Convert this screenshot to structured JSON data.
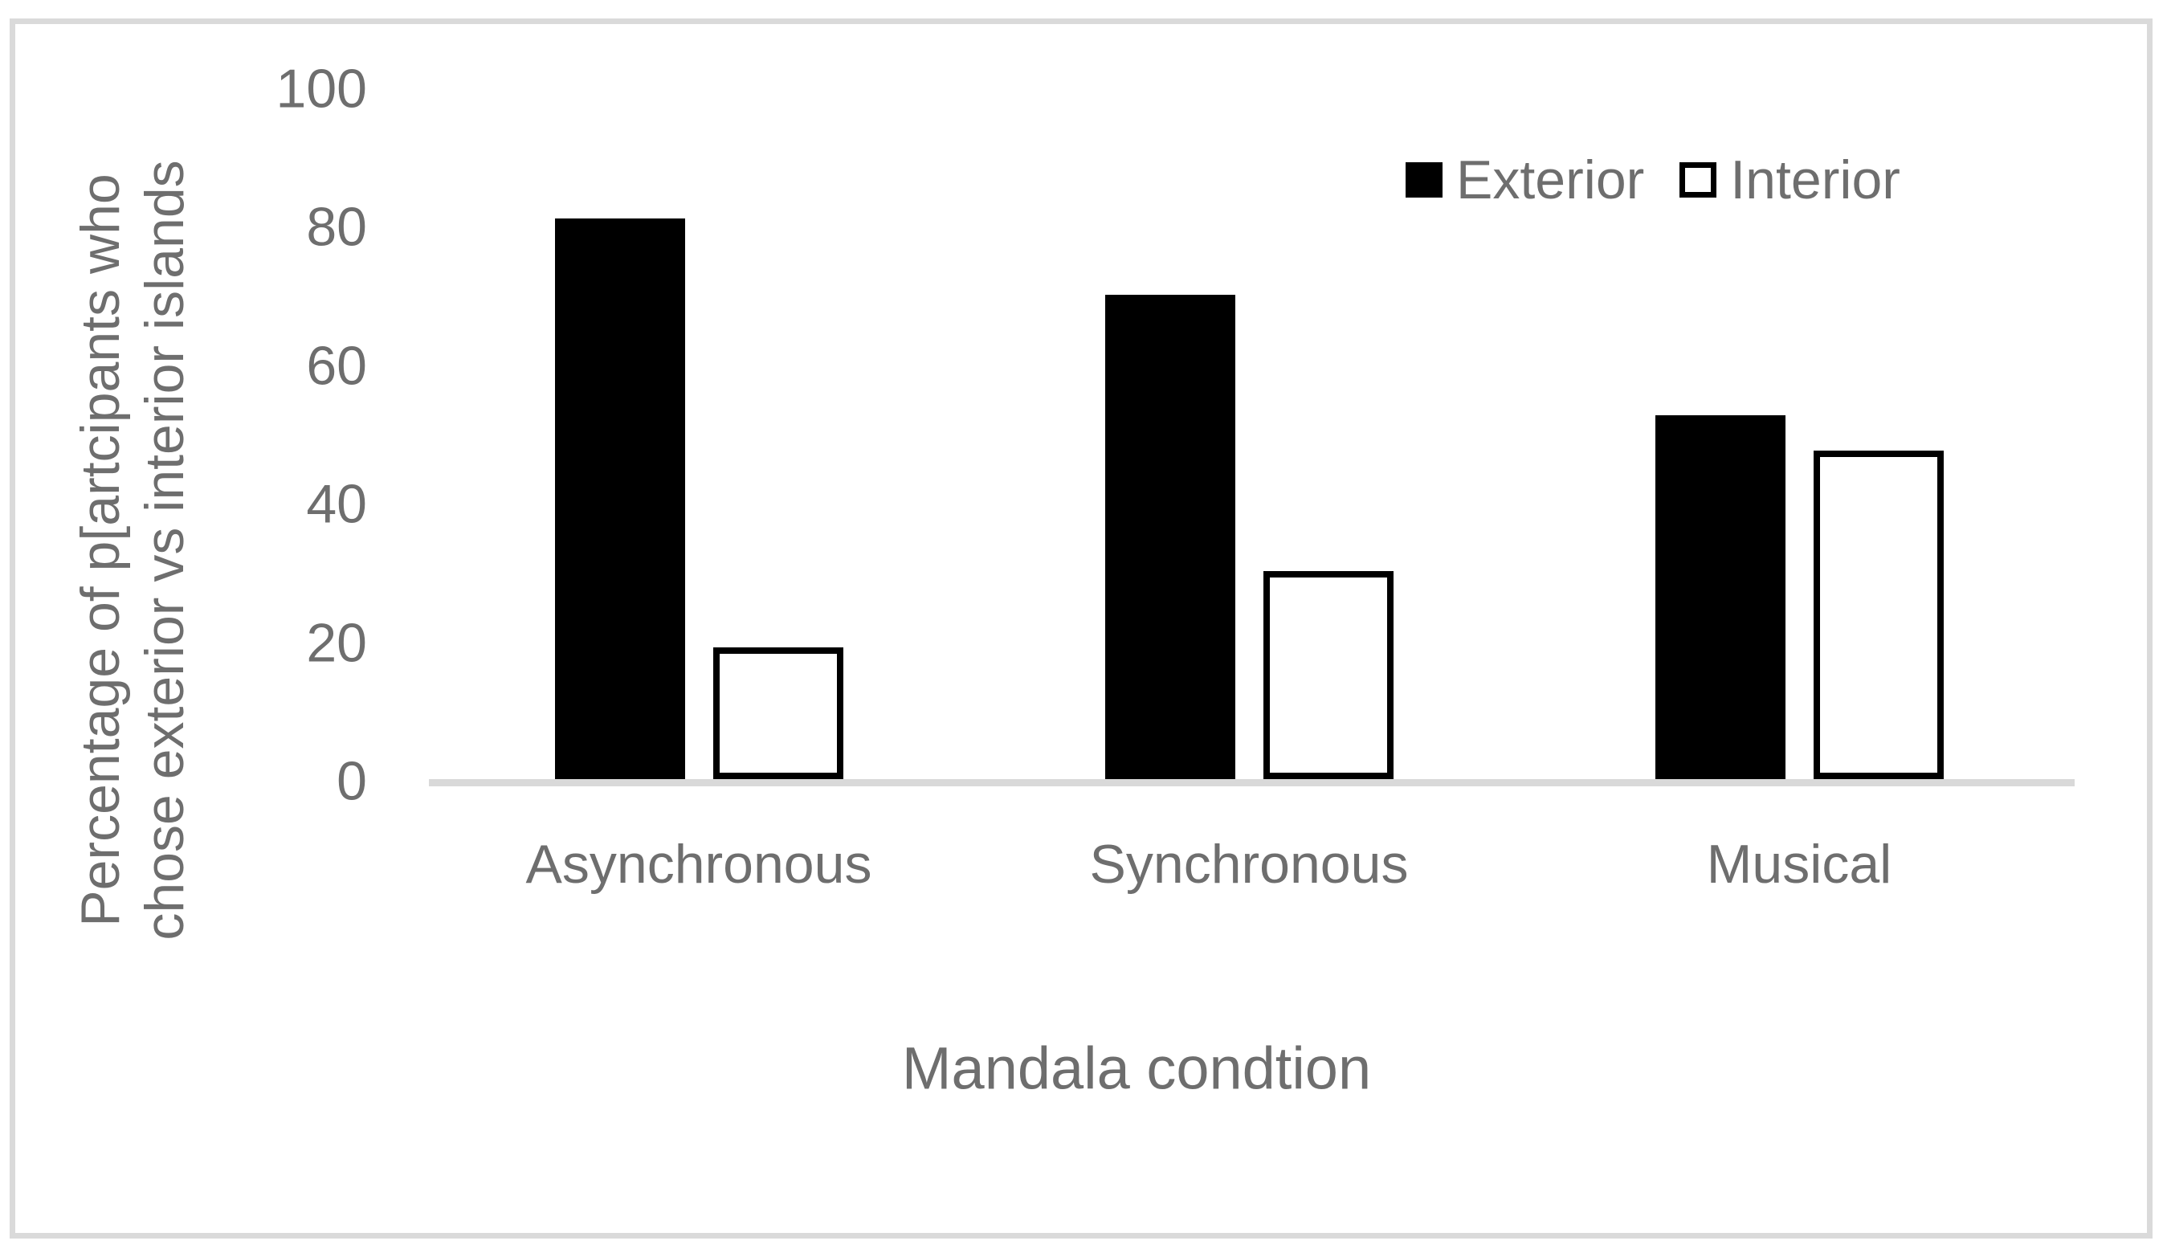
{
  "figure": {
    "background": "#ffffff",
    "frame_border_color": "#dadada",
    "text_color": "#6e6e6e",
    "axis_line_color": "#d9d9d9"
  },
  "chart_data": {
    "type": "bar",
    "title": "",
    "xlabel": "Mandala condtion",
    "ylabel_lines": [
      "Percentage of p[artcipants who",
      "chose exterior vs interior islands"
    ],
    "categories": [
      "Asynchronous",
      "Synchronous",
      "Musical"
    ],
    "series": [
      {
        "name": "Exterior",
        "fill": "#000000",
        "stroke": null,
        "values": [
          81,
          70,
          52.5
        ]
      },
      {
        "name": "Interior",
        "fill": "#ffffff",
        "stroke": "#000000",
        "values": [
          19,
          30,
          47.5
        ]
      }
    ],
    "ylim": [
      0,
      100
    ],
    "yticks": [
      0,
      20,
      40,
      60,
      80,
      100
    ],
    "grid": false,
    "legend_position": "top-right",
    "legend_labels": [
      "Exterior",
      "Interior"
    ]
  }
}
